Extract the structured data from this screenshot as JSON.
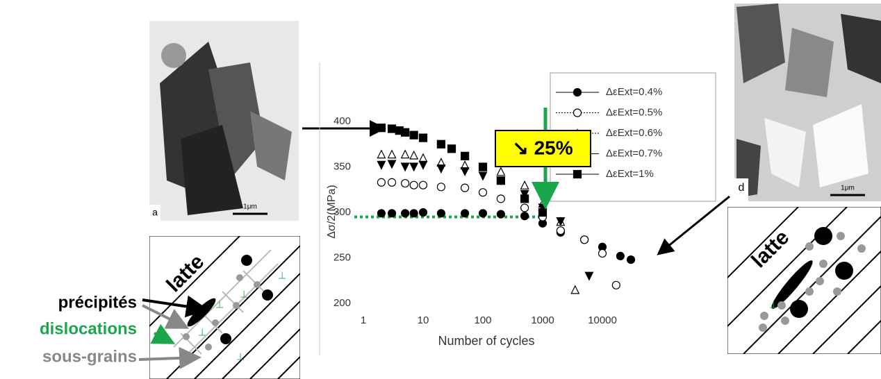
{
  "chart_data": {
    "type": "scatter",
    "x_label": "Number of cycles",
    "y_label": "Δσ/2(MPa)",
    "xlim": [
      1,
      100000
    ],
    "xticks": [
      1,
      10,
      100,
      1000,
      10000
    ],
    "log_x": true,
    "ylim": [
      200,
      400
    ],
    "yticks": [
      200,
      250,
      300,
      350,
      400
    ],
    "legend": "upper right",
    "series": [
      {
        "name": "ΔεExt=0.4%",
        "color": "#000000",
        "marker": "circle",
        "filled": true,
        "x": [
          2,
          3,
          5,
          7,
          10,
          20,
          50,
          100,
          200,
          500,
          1000,
          2000,
          5000,
          10000,
          20000,
          30000
        ],
        "values": [
          299,
          299,
          299,
          299,
          300,
          299,
          299,
          299,
          298,
          296,
          288,
          278,
          270,
          262,
          252,
          248
        ]
      },
      {
        "name": "ΔεExt=0.5%",
        "color": "#000000",
        "marker": "circle",
        "filled": false,
        "x": [
          2,
          3,
          5,
          7,
          10,
          20,
          50,
          100,
          200,
          500,
          1000,
          2000,
          5000,
          10000,
          17000
        ],
        "values": [
          333,
          333,
          332,
          330,
          330,
          328,
          327,
          322,
          315,
          305,
          295,
          280,
          270,
          255,
          220
        ]
      },
      {
        "name": "ΔεExt=0.6%",
        "color": "#000000",
        "marker": "triangle",
        "filled": false,
        "x": [
          2,
          3,
          5,
          7,
          10,
          20,
          50,
          100,
          200,
          500,
          1000,
          2000,
          3500
        ],
        "values": [
          364,
          364,
          364,
          363,
          360,
          355,
          352,
          350,
          345,
          330,
          310,
          290,
          215
        ]
      },
      {
        "name": "ΔεExt=0.7%",
        "color": "#000000",
        "marker": "triangle-down",
        "filled": true,
        "x": [
          2,
          3,
          5,
          7,
          10,
          20,
          50,
          100,
          200,
          500,
          1000,
          2000,
          6000
        ],
        "values": [
          352,
          353,
          350,
          350,
          352,
          348,
          345,
          340,
          335,
          320,
          305,
          290,
          230
        ]
      },
      {
        "name": "ΔεExt=1%",
        "color": "#000000",
        "marker": "square",
        "filled": true,
        "x": [
          2,
          3,
          4,
          5,
          7,
          10,
          20,
          30,
          50,
          100,
          200,
          500,
          1000
        ],
        "values": [
          393,
          392,
          390,
          388,
          385,
          382,
          375,
          370,
          362,
          350,
          335,
          315,
          300
        ]
      }
    ],
    "reference_line": {
      "value": 295,
      "color": "#1aa64a"
    },
    "annotation": "↘ 25%"
  },
  "left_micrograph": {
    "letter": "a",
    "scale": "1μm"
  },
  "right_micrograph": {
    "letter": "d",
    "scale": "1μm"
  },
  "left_schematic": {
    "label": "latte",
    "legend": [
      "précipités",
      "dislocations",
      "sous-grains"
    ]
  },
  "right_schematic": {
    "label": "latte"
  }
}
